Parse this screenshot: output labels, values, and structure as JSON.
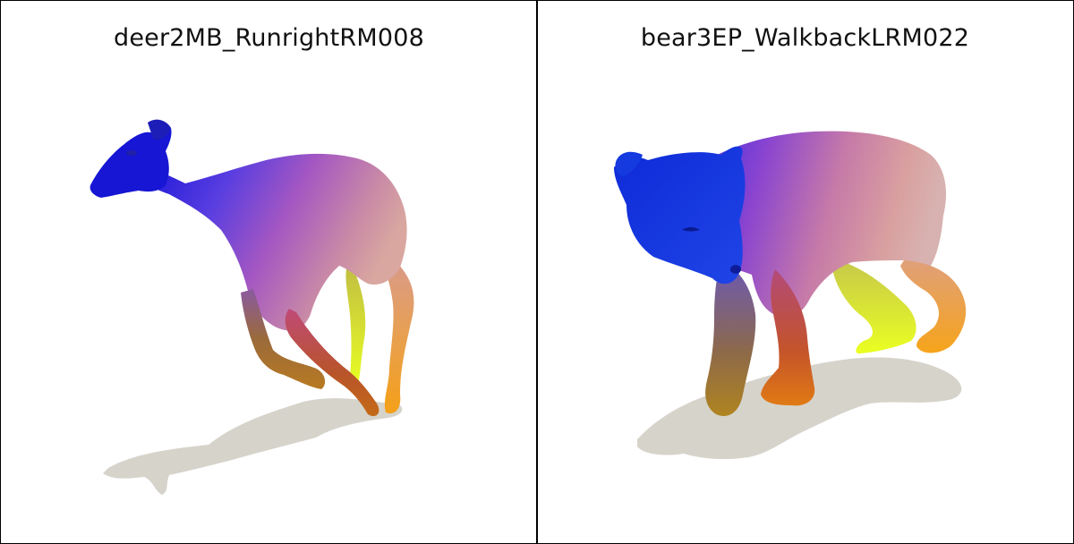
{
  "panels": [
    {
      "title": "deer2MB_RunrightRM008",
      "subject": "deer",
      "pose": "running"
    },
    {
      "title": "bear3EP_WalkbackLRM022",
      "subject": "bear",
      "pose": "walking"
    }
  ],
  "colors": {
    "background": "#ffffff",
    "divider": "#000000",
    "shadow": "#d6d3cb",
    "gradient": [
      "#1a1ae6",
      "#8a4fd6",
      "#c67aa8",
      "#d9a49a",
      "#e89a4a",
      "#f2a020",
      "#e6ff2a"
    ]
  }
}
